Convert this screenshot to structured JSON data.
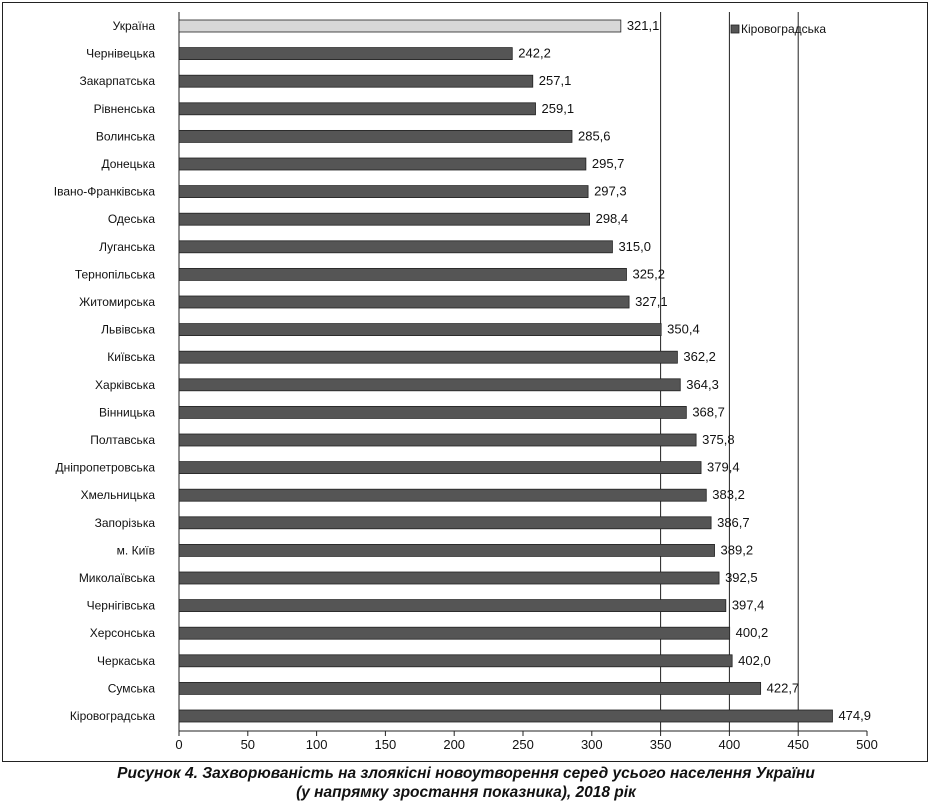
{
  "chart_data": {
    "type": "bar",
    "orientation": "horizontal",
    "categories": [
      "Україна",
      "Чернівецька",
      "Закарпатська",
      "Рівненська",
      "Волинська",
      "Донецька",
      "Івано-Франківська",
      "Одеська",
      "Луганська",
      "Тернопільська",
      "Житомирська",
      "Львівська",
      "Київська",
      "Харківська",
      "Вінницька",
      "Полтавська",
      "Дніпропетровська",
      "Хмельницька",
      "Запорізька",
      "м. Київ",
      "Миколаївська",
      "Чернігівська",
      "Херсонська",
      "Черкаська",
      "Сумська",
      "Кіровоградська"
    ],
    "values": [
      321.1,
      242.2,
      257.1,
      259.1,
      285.6,
      295.7,
      297.3,
      298.4,
      315.0,
      325.2,
      327.1,
      350.4,
      362.2,
      364.3,
      368.7,
      375.8,
      379.4,
      383.2,
      386.7,
      389.2,
      392.5,
      397.4,
      400.2,
      402.0,
      422.7,
      474.9
    ],
    "value_labels": [
      "321,1",
      "242,2",
      "257,1",
      "259,1",
      "285,6",
      "295,7",
      "297,3",
      "298,4",
      "315,0",
      "325,2",
      "327,1",
      "350,4",
      "362,2",
      "364,3",
      "368,7",
      "375,8",
      "379,4",
      "383,2",
      "386,7",
      "389,2",
      "392,5",
      "397,4",
      "400,2",
      "402,0",
      "422,7",
      "474,9"
    ],
    "highlight": {
      "category": "Україна",
      "color": "#d8d8d8"
    },
    "bar_color": "#555555",
    "xlim": [
      0,
      500
    ],
    "x_ticks": [
      0,
      50,
      100,
      150,
      200,
      250,
      300,
      350,
      400,
      450,
      500
    ],
    "gridlines_at": [
      350,
      400,
      450
    ],
    "legend": {
      "label": "Кіровоградська",
      "placement": "top-right"
    },
    "xlabel": "",
    "ylabel": ""
  },
  "caption": {
    "line1": "Рисунок 4. Захворюваність на злоякісні новоутворення серед усього населення України",
    "line2": "(у напрямку зростання показника), 2018 рік"
  }
}
